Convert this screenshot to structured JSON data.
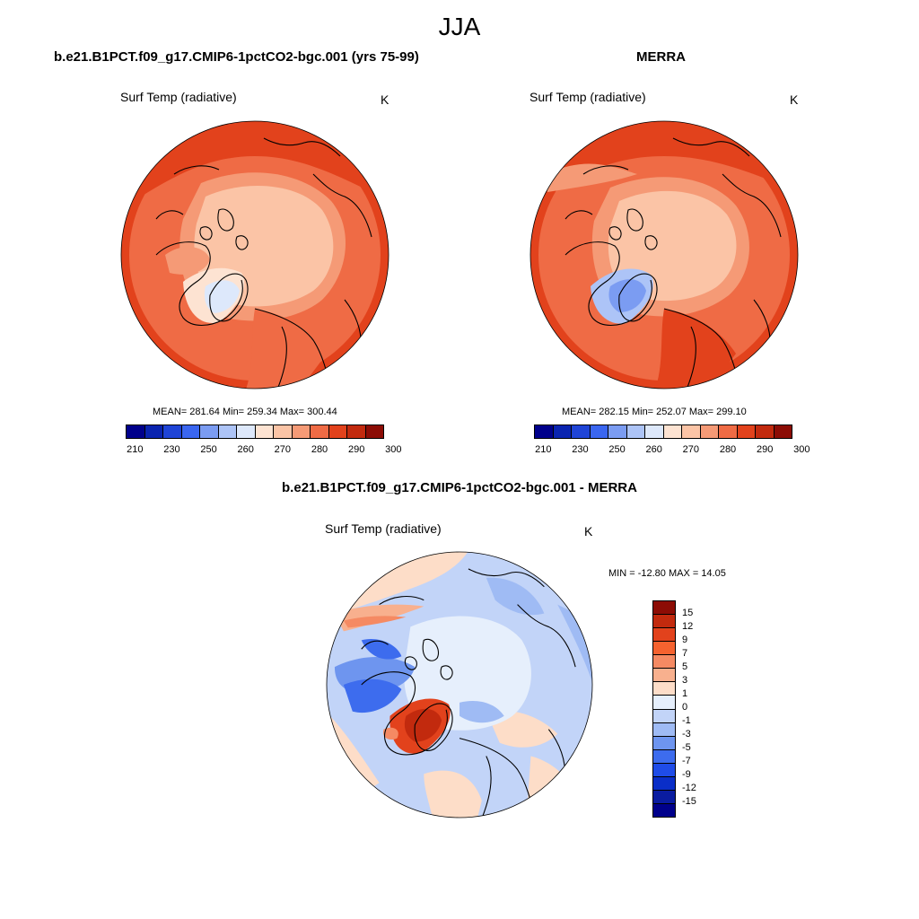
{
  "main_title": "JJA",
  "panels": {
    "left": {
      "title": "b.e21.B1PCT.f09_g17.CMIP6-1pctCO2-bgc.001 (yrs 75-99)",
      "variable": "Surf Temp (radiative)",
      "units": "K",
      "stats": "MEAN= 281.64  Min= 259.34  Max= 300.44"
    },
    "right": {
      "title": "MERRA",
      "variable": "Surf Temp (radiative)",
      "units": "K",
      "stats": "MEAN= 282.15  Min= 252.07  Max= 299.10"
    },
    "diff": {
      "title": "b.e21.B1PCT.f09_g17.CMIP6-1pctCO2-bgc.001 - MERRA",
      "variable": "Surf Temp (radiative)",
      "units": "K",
      "stats": "MIN = -12.80 MAX =  14.05"
    }
  },
  "abs_colorbar": {
    "colors": [
      "#00008b",
      "#0a24b0",
      "#1f44d6",
      "#3a66f0",
      "#7b9cf2",
      "#adc4f7",
      "#dde8fb",
      "#fde3d2",
      "#fbc4a6",
      "#f59a76",
      "#ef6b45",
      "#e2421c",
      "#c22a0e",
      "#8c0c05"
    ],
    "ticks": [
      "210",
      "230",
      "250",
      "260",
      "270",
      "280",
      "290",
      "300"
    ]
  },
  "diff_colorbar": {
    "colors": [
      "#8c0c05",
      "#c22a0e",
      "#e2421c",
      "#f5622f",
      "#f58a63",
      "#f8b08e",
      "#fdddc8",
      "#e6effc",
      "#c2d4f8",
      "#9fbbf4",
      "#6e95ef",
      "#3d6cee",
      "#1f4ce8",
      "#0a2ec8",
      "#0a1ca0",
      "#00008b"
    ],
    "ticks": [
      "15",
      "12",
      "9",
      "7",
      "5",
      "3",
      "1",
      "0",
      "-1",
      "-3",
      "-5",
      "-7",
      "-9",
      "-12",
      "-15"
    ]
  }
}
